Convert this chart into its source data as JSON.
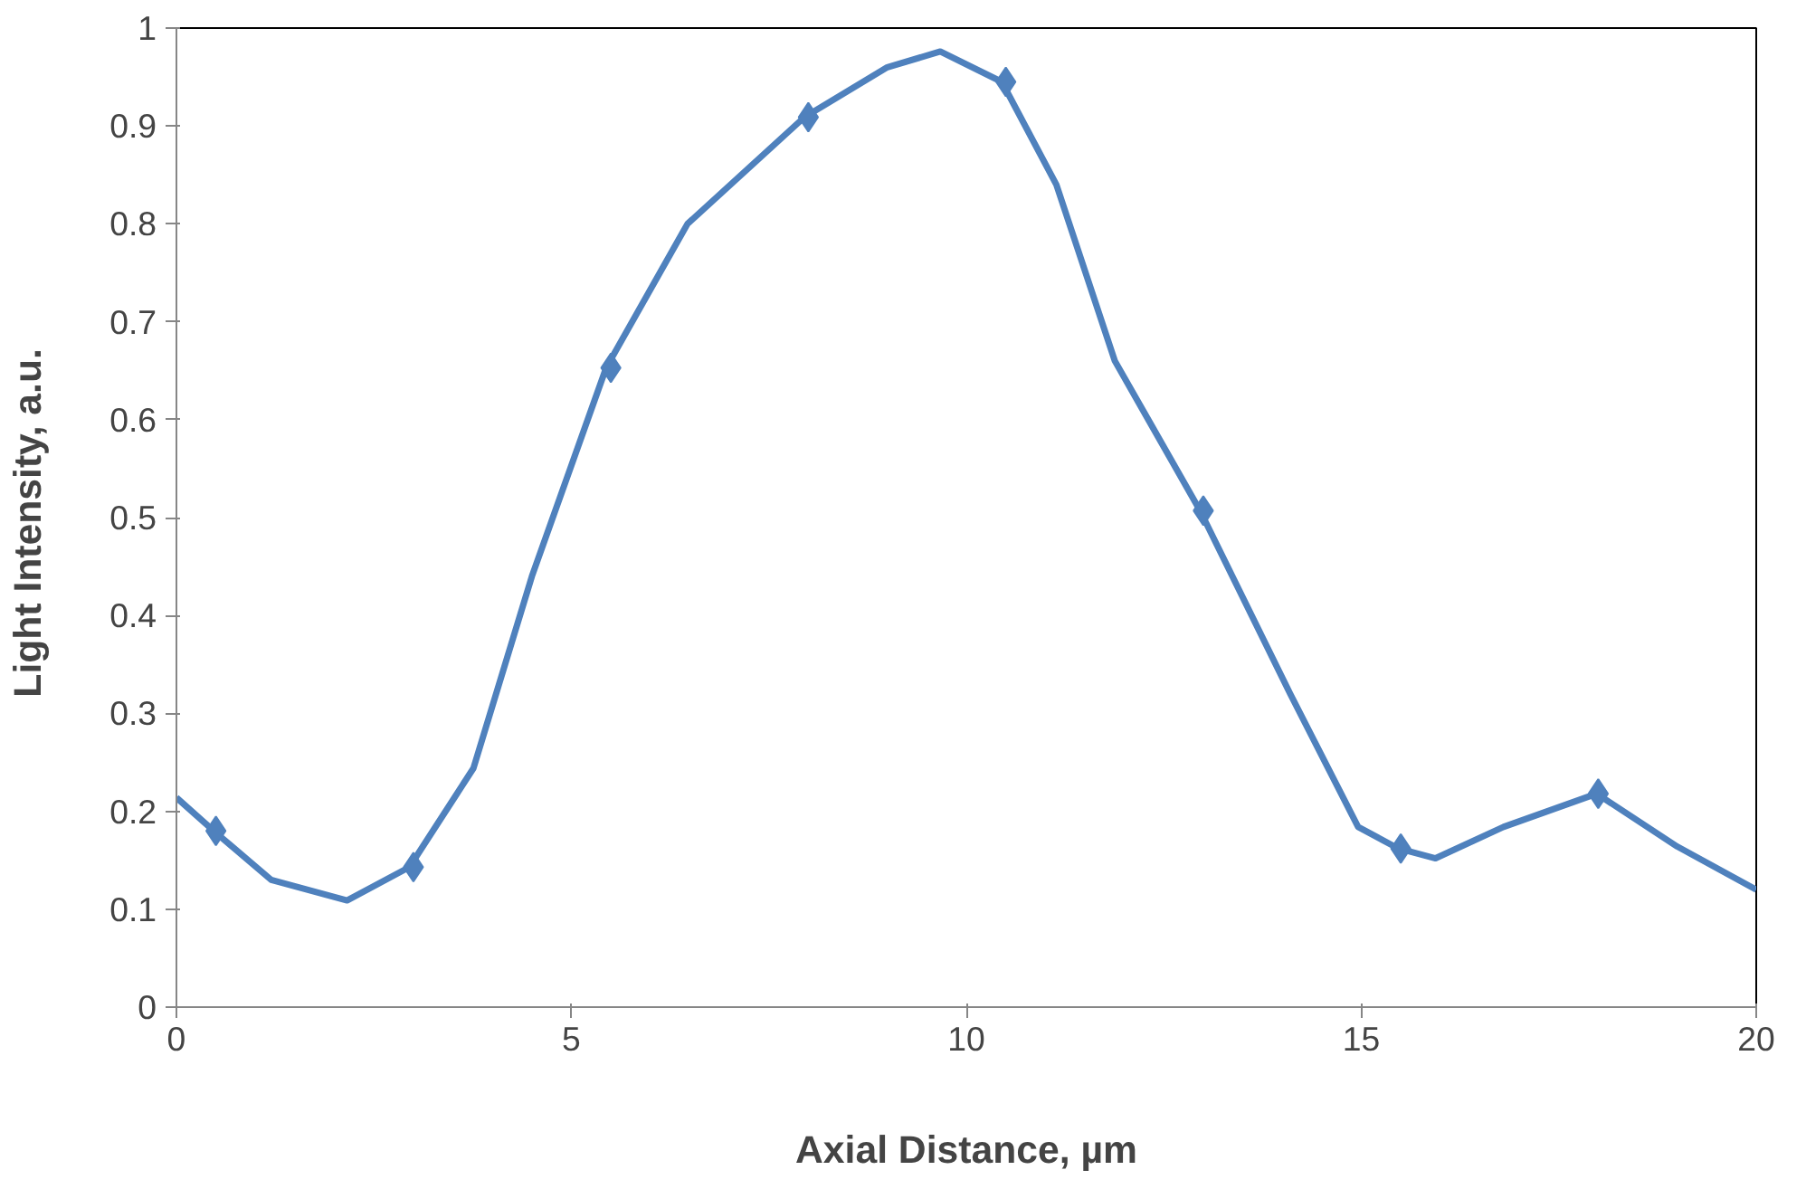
{
  "chart_data": {
    "type": "line",
    "xlabel": "Axial Distance, µm",
    "ylabel": "Light  Intensity, a.u.",
    "xlim": [
      0,
      20
    ],
    "xticks": [
      0,
      5,
      10,
      15,
      20
    ],
    "ylim": [
      0,
      1
    ],
    "yticks": [
      0,
      0.1,
      0.2,
      0.3,
      0.4,
      0.5,
      0.6,
      0.7,
      0.8,
      0.9,
      1
    ],
    "series": [
      {
        "marker": "none",
        "line_style": "solid",
        "color": "#4f81bd",
        "x": [
          0,
          0.5,
          1.2,
          2.16,
          2.95,
          3.76,
          4.5,
          5.44,
          6.47,
          7.95,
          9.0,
          9.67,
          10.45,
          11.14,
          11.88,
          12.96,
          14.1,
          14.96,
          15.47,
          15.94,
          16.8,
          17.98,
          19.0,
          20
        ],
        "values": [
          0.214,
          0.178,
          0.13,
          0.109,
          0.143,
          0.244,
          0.44,
          0.653,
          0.8,
          0.909,
          0.96,
          0.976,
          0.945,
          0.84,
          0.66,
          0.507,
          0.32,
          0.184,
          0.162,
          0.152,
          0.184,
          0.218,
          0.164,
          0.12
        ]
      },
      {
        "type": "scatter",
        "marker": "diamond",
        "color": "#4f81bd",
        "x": [
          0.5,
          3,
          5.5,
          8,
          10.5,
          13,
          15.5,
          18
        ],
        "values": [
          0.18,
          0.143,
          0.653,
          0.909,
          0.945,
          0.507,
          0.162,
          0.218
        ]
      }
    ]
  }
}
